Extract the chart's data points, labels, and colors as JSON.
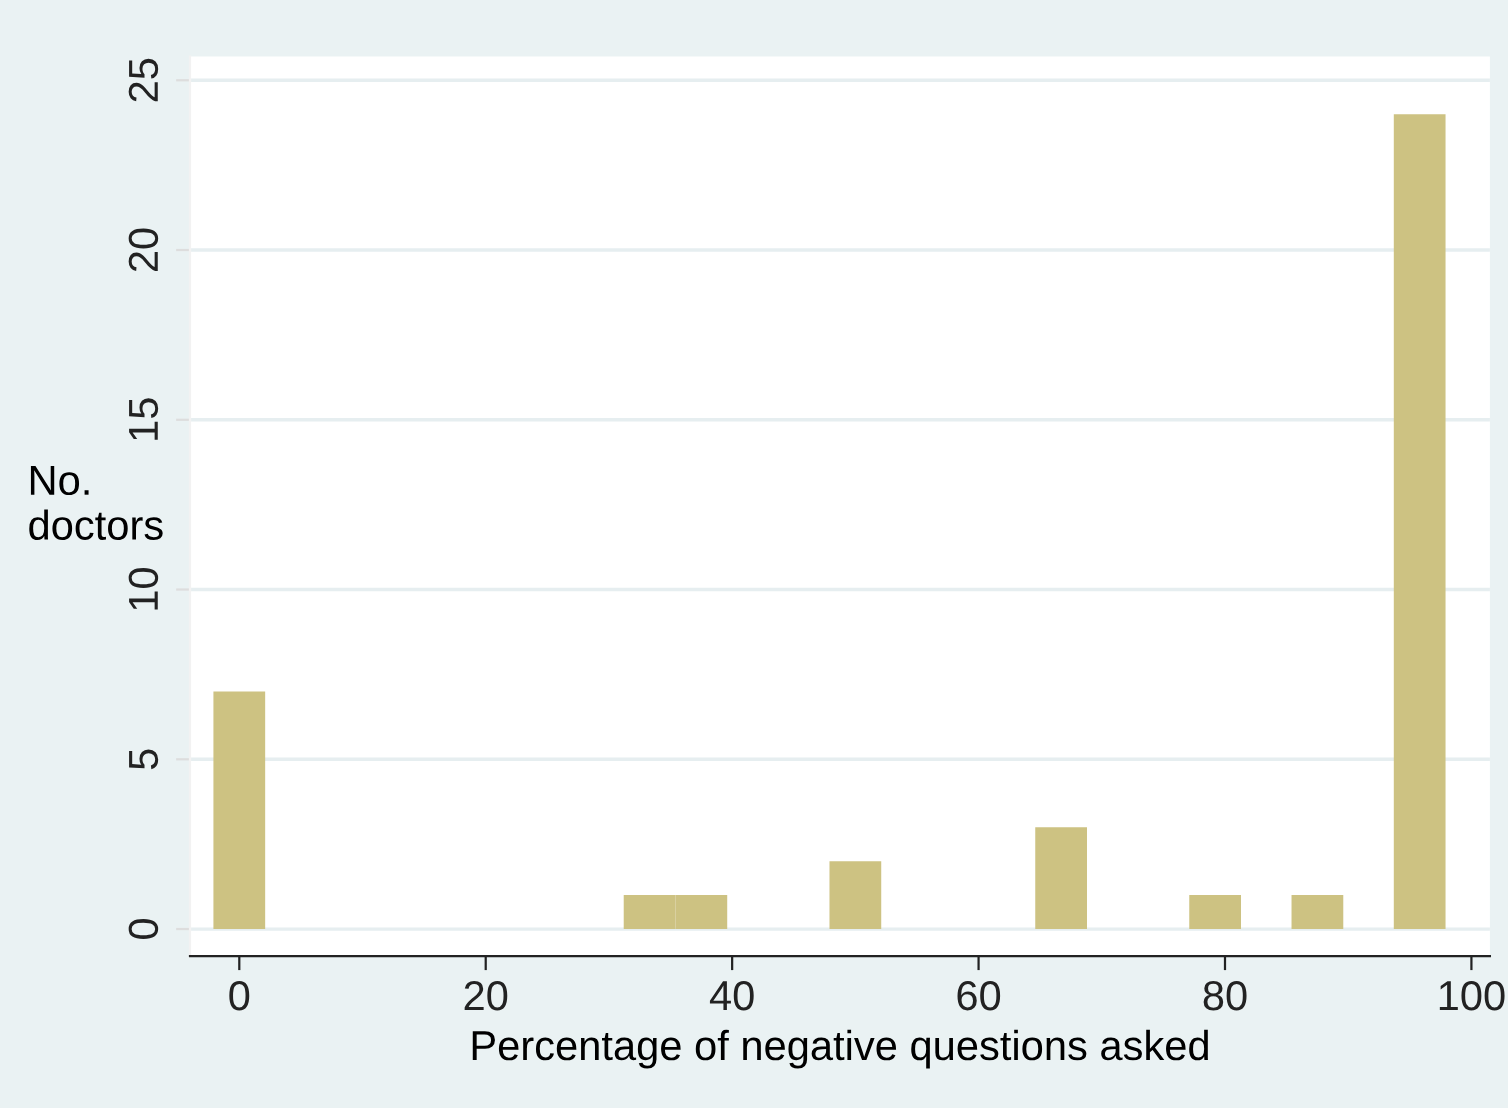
{
  "chart_data": {
    "type": "bar",
    "xlabel": "Percentage of negative questions asked",
    "ylabel": "No.\ndoctors",
    "x": [
      0,
      33.3,
      37.5,
      50,
      66.7,
      79.2,
      87.5,
      95.8
    ],
    "values": [
      7,
      1,
      1,
      2,
      3,
      1,
      1,
      24
    ],
    "color": "#cdc282",
    "xlim": [
      -4,
      101.5
    ],
    "ylim": [
      -0.8,
      25.7
    ],
    "xticks": [
      0,
      20,
      40,
      60,
      80,
      100
    ],
    "yticks": [
      0,
      5,
      10,
      15,
      20,
      25
    ],
    "grid": "y"
  }
}
